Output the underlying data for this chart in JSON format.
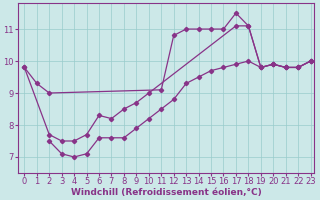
{
  "xlabel": "Windchill (Refroidissement éolien,°C)",
  "background_color": "#cce8e8",
  "line_color": "#883388",
  "xlim_min": -0.5,
  "xlim_max": 23.3,
  "ylim_min": 6.5,
  "ylim_max": 11.8,
  "xticks": [
    0,
    1,
    2,
    3,
    4,
    5,
    6,
    7,
    8,
    9,
    10,
    11,
    12,
    13,
    14,
    15,
    16,
    17,
    18,
    19,
    20,
    21,
    22,
    23
  ],
  "yticks": [
    7,
    8,
    9,
    10,
    11
  ],
  "line1_x": [
    0,
    1,
    2,
    11,
    12,
    13,
    14,
    15,
    16,
    17,
    18,
    19,
    20,
    21,
    22,
    23
  ],
  "line1_y": [
    9.8,
    9.3,
    9.0,
    9.1,
    10.8,
    11.0,
    11.0,
    11.0,
    11.0,
    11.5,
    11.1,
    9.8,
    9.9,
    9.8,
    9.8,
    10.0
  ],
  "line2_x": [
    0,
    2,
    3,
    4,
    5,
    6,
    7,
    8,
    9,
    10,
    17,
    18,
    19,
    20,
    21,
    22,
    23
  ],
  "line2_y": [
    9.8,
    7.7,
    7.5,
    7.5,
    7.7,
    8.3,
    8.2,
    8.5,
    8.7,
    9.0,
    11.1,
    11.1,
    9.8,
    9.9,
    9.8,
    9.8,
    10.0
  ],
  "line3_x": [
    2,
    3,
    4,
    5,
    6,
    7,
    8,
    9,
    10,
    11,
    12,
    13,
    14,
    15,
    16,
    17,
    18,
    19,
    20,
    21,
    22,
    23
  ],
  "line3_y": [
    7.5,
    7.1,
    7.0,
    7.1,
    7.6,
    7.6,
    7.6,
    7.9,
    8.2,
    8.5,
    8.8,
    9.3,
    9.5,
    9.7,
    9.8,
    9.9,
    10.0,
    9.8,
    9.9,
    9.8,
    9.8,
    10.0
  ],
  "grid_color": "#99cccc",
  "marker": "D",
  "marker_size": 2.2,
  "line_width": 0.9,
  "xlabel_fontsize": 6.5,
  "tick_fontsize": 6.0
}
